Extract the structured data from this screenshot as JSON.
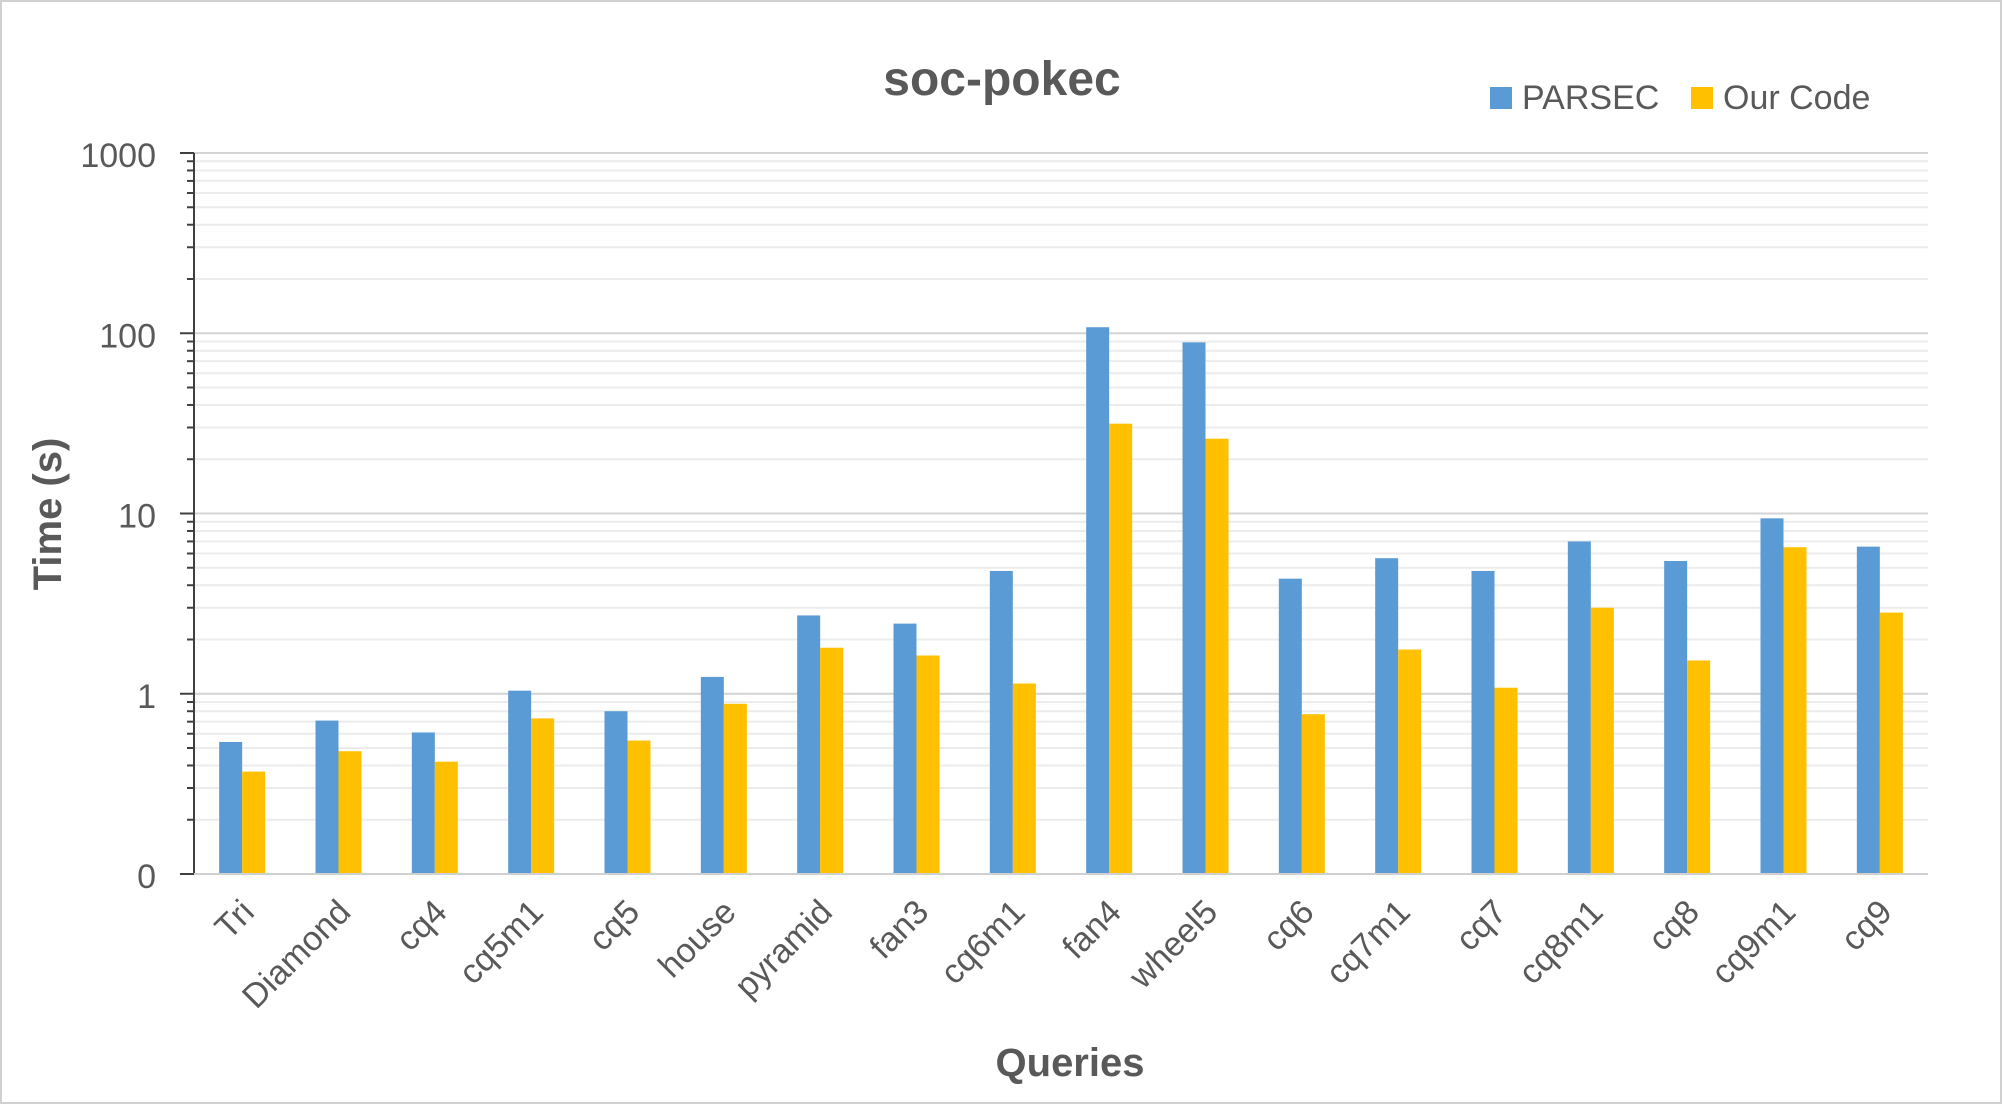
{
  "chart_data": {
    "type": "bar",
    "title": "soc-pokec",
    "xlabel": "Queries",
    "ylabel": "Time (s)",
    "yscale": "log",
    "ylim": [
      0.1,
      1000
    ],
    "yticks": [
      0.1,
      1,
      10,
      100,
      1000
    ],
    "ytick_labels": [
      "0",
      "1",
      "10",
      "100",
      "1000"
    ],
    "grid": true,
    "legend_position": "top-right",
    "categories": [
      "Tri",
      "Diamond",
      "cq4",
      "cq5m1",
      "cq5",
      "house",
      "pyramid",
      "fan3",
      "cq6m1",
      "fan4",
      "wheel5",
      "cq6",
      "cq7m1",
      "cq7",
      "cq8m1",
      "cq8",
      "cq9m1",
      "cq9"
    ],
    "series": [
      {
        "name": "PARSEC",
        "color": "#5b9bd5",
        "values": [
          0.54,
          0.71,
          0.61,
          1.04,
          0.8,
          1.24,
          2.72,
          2.45,
          4.8,
          108,
          89,
          4.35,
          5.65,
          4.8,
          7.0,
          5.45,
          9.4,
          6.55
        ]
      },
      {
        "name": "Our Code",
        "color": "#ffc000",
        "values": [
          0.37,
          0.48,
          0.42,
          0.73,
          0.55,
          0.88,
          1.8,
          1.63,
          1.14,
          31.5,
          26.0,
          0.77,
          1.76,
          1.08,
          3.0,
          1.53,
          6.5,
          2.82
        ]
      }
    ]
  }
}
